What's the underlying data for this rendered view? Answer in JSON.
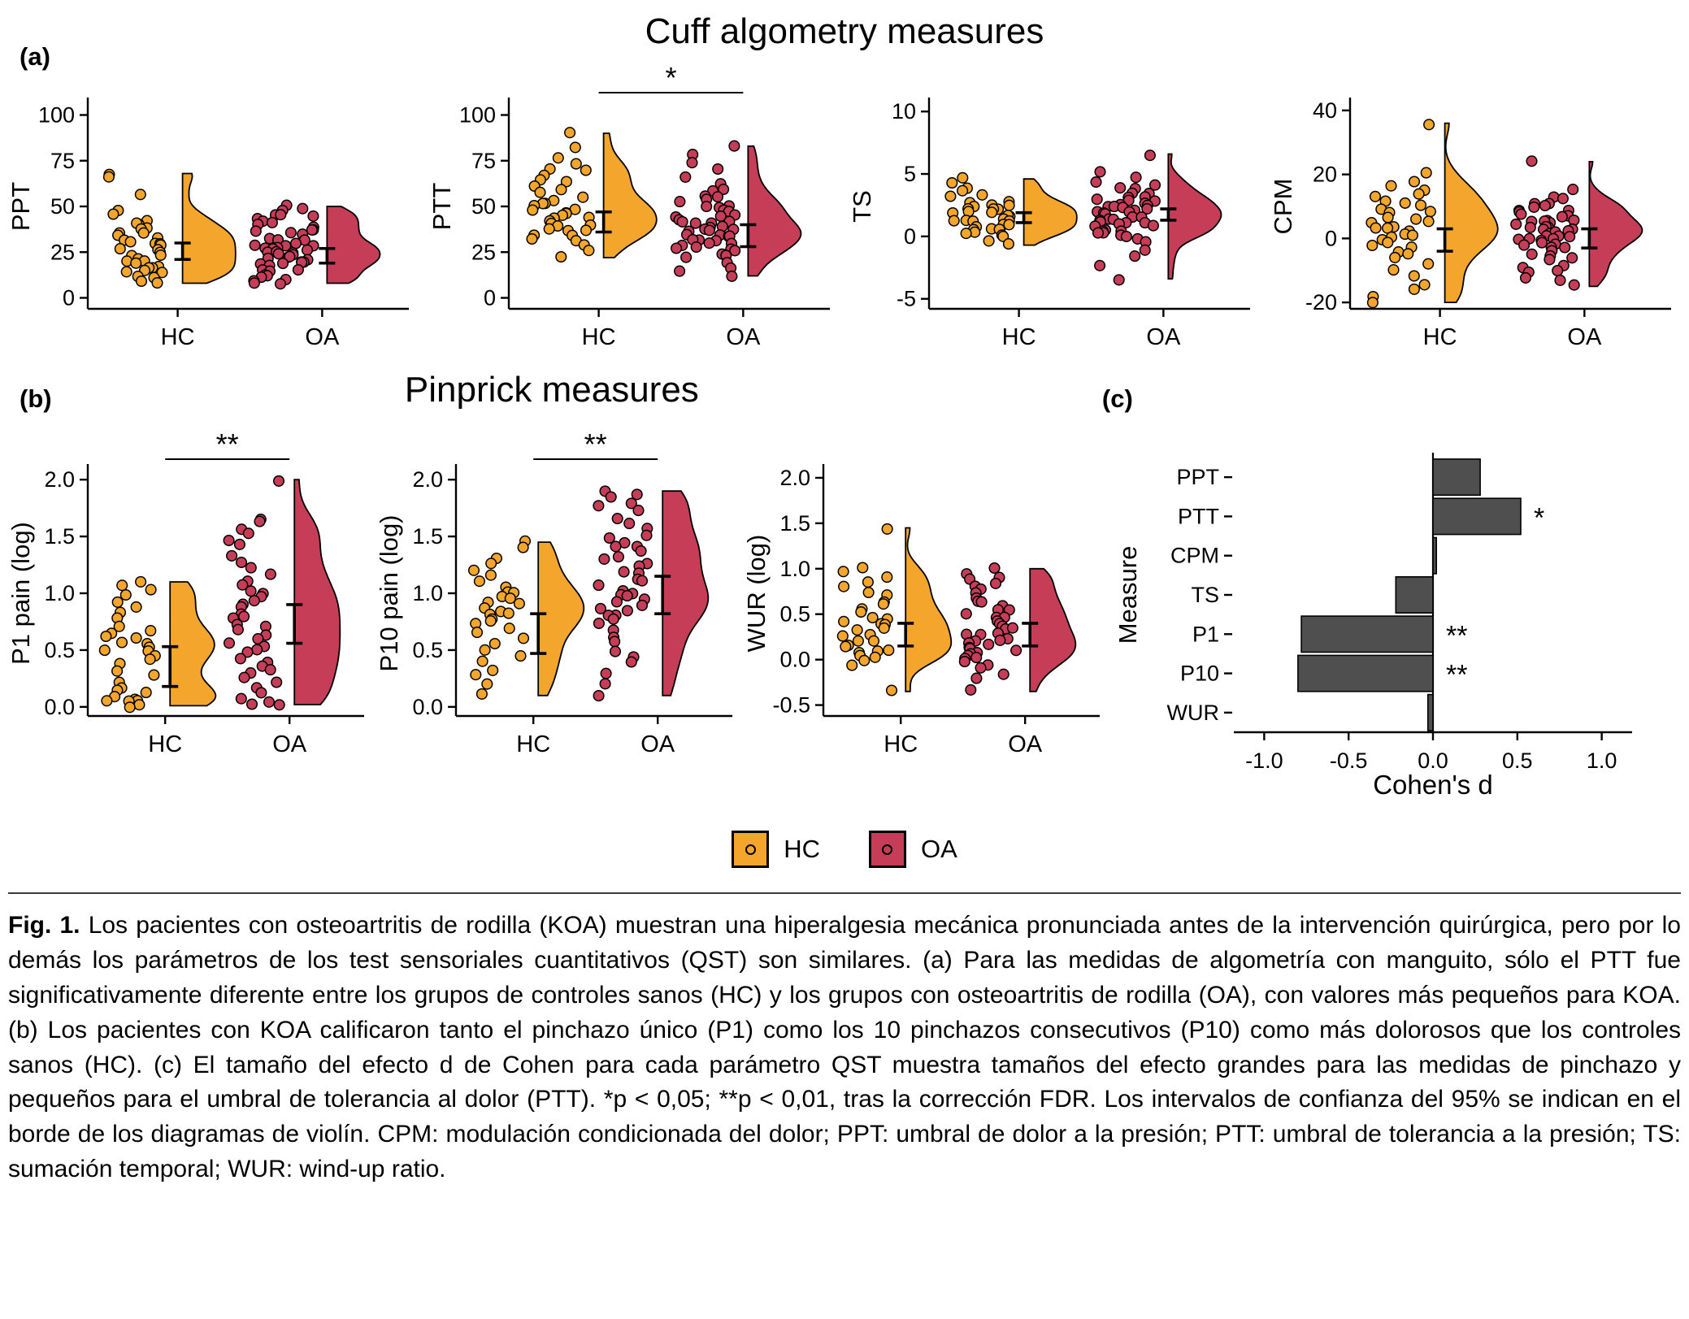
{
  "page": {
    "title_a": "Cuff algometry measures",
    "title_b": "Pinprick measures",
    "panel_labels": {
      "a": "(a)",
      "b": "(b)",
      "c": "(c)"
    }
  },
  "colors": {
    "hc": "#F4A52C",
    "oa": "#C63D57",
    "bar": "#4F4F4F"
  },
  "legend": {
    "items": [
      {
        "label": "HC",
        "color": "#F4A52C"
      },
      {
        "label": "OA",
        "color": "#C63D57"
      }
    ]
  },
  "caption": {
    "label": "Fig. 1.",
    "body": "Los pacientes con osteoartritis de rodilla (KOA) muestran una hiperalgesia mecánica pronunciada antes de la intervención quirúrgica, pero por lo demás los parámetros de los test sensoriales cuantitativos (QST) son similares. (a) Para las medidas de algometría con manguito, sólo el PTT fue significativamente diferente entre los grupos de controles sanos (HC) y los grupos con osteoartritis de rodilla (OA), con valores más pequeños para KOA. (b) Los pacientes con KOA calificaron tanto el pinchazo único (P1) como los 10 pinchazos consecutivos (P10) como más dolorosos que los controles sanos (HC). (c) El tamaño del efecto d de Cohen para cada parámetro QST muestra tamaños del efecto grandes para las medidas de pinchazo y pequeños para el umbral de tolerancia al dolor (PTT). *p < 0,05; **p < 0,01, tras la corrección FDR. Los intervalos de confianza del 95% se indican en el borde de los diagramas de violín. CPM: modulación condicionada del dolor; PPT: umbral de dolor a la presión; PTT: umbral de tolerancia a la presión; TS: sumación temporal; WUR: wind-up ratio."
  },
  "chart_data": [
    {
      "id": "ppt",
      "type": "raincloud",
      "ylabel": "PPT",
      "yticks": [
        0,
        25,
        50,
        75,
        100
      ],
      "ytick_labels": [
        "0",
        "25",
        "50",
        "75",
        "100"
      ],
      "ydomain": [
        -6,
        106
      ],
      "categories": [
        "HC",
        "OA"
      ],
      "sig": "",
      "groups": [
        {
          "name": "HC",
          "ci": [
            21,
            30
          ],
          "values": [
            68,
            66,
            57,
            48,
            45,
            43,
            41,
            40,
            38,
            37,
            36,
            35,
            34,
            33,
            32,
            31,
            30,
            29,
            28,
            27,
            26,
            25,
            24,
            23,
            22,
            21,
            20,
            19,
            18,
            17,
            16,
            15,
            14,
            13,
            12,
            11,
            10,
            8
          ]
        },
        {
          "name": "OA",
          "ci": [
            19,
            27
          ],
          "values": [
            50,
            48,
            47,
            46,
            45,
            44,
            43,
            42,
            41,
            40,
            39,
            38,
            37,
            36,
            35,
            34,
            33,
            32,
            31,
            30,
            29,
            29,
            28,
            28,
            27,
            27,
            26,
            25,
            25,
            24,
            24,
            23,
            22,
            22,
            21,
            21,
            20,
            20,
            19,
            18,
            18,
            17,
            16,
            15,
            14,
            13,
            12,
            11,
            10,
            9,
            8,
            8
          ]
        }
      ]
    },
    {
      "id": "ptt",
      "type": "raincloud",
      "ylabel": "PTT",
      "yticks": [
        0,
        25,
        50,
        75,
        100
      ],
      "ytick_labels": [
        "0",
        "25",
        "50",
        "75",
        "100"
      ],
      "ydomain": [
        -6,
        106
      ],
      "categories": [
        "HC",
        "OA"
      ],
      "sig": "*",
      "groups": [
        {
          "name": "HC",
          "ci": [
            36,
            47
          ],
          "values": [
            90,
            82,
            76,
            73,
            71,
            69,
            67,
            65,
            63,
            61,
            59,
            57,
            55,
            54,
            52,
            51,
            50,
            49,
            48,
            47,
            46,
            45,
            44,
            43,
            42,
            41,
            40,
            39,
            38,
            37,
            36,
            35,
            34,
            33,
            31,
            29,
            26,
            22
          ]
        },
        {
          "name": "OA",
          "ci": [
            28,
            40
          ],
          "values": [
            83,
            78,
            74,
            70,
            66,
            63,
            60,
            58,
            56,
            55,
            53,
            52,
            51,
            50,
            49,
            48,
            47,
            46,
            45,
            44,
            43,
            42,
            41,
            40,
            40,
            39,
            38,
            38,
            37,
            36,
            36,
            35,
            34,
            34,
            33,
            32,
            32,
            31,
            30,
            30,
            29,
            28,
            27,
            26,
            25,
            24,
            23,
            22,
            20,
            17,
            14,
            12
          ]
        }
      ]
    },
    {
      "id": "ts",
      "type": "raincloud",
      "ylabel": "TS",
      "yticks": [
        -5,
        0,
        5,
        10
      ],
      "ytick_labels": [
        "-5",
        "0",
        "5",
        "10"
      ],
      "ydomain": [
        -5.8,
        10.6
      ],
      "categories": [
        "HC",
        "OA"
      ],
      "sig": "",
      "groups": [
        {
          "name": "HC",
          "ci": [
            1.1,
            1.9
          ],
          "values": [
            4.6,
            4.2,
            3.9,
            3.6,
            3.3,
            3.1,
            2.9,
            2.8,
            2.6,
            2.5,
            2.4,
            2.3,
            2.2,
            2.1,
            2.0,
            1.9,
            1.8,
            1.7,
            1.6,
            1.5,
            1.4,
            1.3,
            1.2,
            1.1,
            1.0,
            0.9,
            0.8,
            0.7,
            0.6,
            0.5,
            0.4,
            0.2,
            0.1,
            0.0,
            -0.3,
            -0.7
          ]
        },
        {
          "name": "OA",
          "ci": [
            1.3,
            2.2
          ],
          "values": [
            6.6,
            5.1,
            4.6,
            4.3,
            4.1,
            3.9,
            3.7,
            3.5,
            3.4,
            3.2,
            3.1,
            3.0,
            2.9,
            2.8,
            2.7,
            2.6,
            2.5,
            2.4,
            2.3,
            2.2,
            2.1,
            2.0,
            2.0,
            1.9,
            1.8,
            1.7,
            1.6,
            1.5,
            1.5,
            1.4,
            1.3,
            1.2,
            1.1,
            1.0,
            0.9,
            0.8,
            0.7,
            0.6,
            0.5,
            0.4,
            0.3,
            0.2,
            0.1,
            0.0,
            -0.2,
            -0.5,
            -1.0,
            -1.6,
            -2.4,
            -3.4
          ]
        }
      ]
    },
    {
      "id": "cpm",
      "type": "raincloud",
      "ylabel": "CPM",
      "yticks": [
        -20,
        0,
        20,
        40
      ],
      "ytick_labels": [
        "-20",
        "0",
        "20",
        "40"
      ],
      "ydomain": [
        -22,
        42
      ],
      "categories": [
        "HC",
        "OA"
      ],
      "sig": "",
      "groups": [
        {
          "name": "HC",
          "ci": [
            -4,
            3
          ],
          "values": [
            36,
            21,
            18,
            16,
            15,
            14,
            13,
            12,
            11,
            10,
            9,
            8,
            8,
            7,
            6,
            5,
            5,
            4,
            3,
            3,
            2,
            1,
            1,
            0,
            0,
            -1,
            -2,
            -3,
            -4,
            -5,
            -6,
            -8,
            -10,
            -12,
            -14,
            -16,
            -18,
            -20
          ]
        },
        {
          "name": "OA",
          "ci": [
            -3,
            3
          ],
          "values": [
            24,
            15,
            13,
            12,
            11,
            11,
            10,
            10,
            9,
            9,
            8,
            8,
            7,
            7,
            6,
            6,
            5,
            5,
            5,
            4,
            4,
            4,
            3,
            3,
            3,
            2,
            2,
            2,
            1,
            1,
            1,
            0,
            0,
            0,
            -1,
            -1,
            -2,
            -2,
            -3,
            -3,
            -4,
            -5,
            -5,
            -6,
            -7,
            -8,
            -9,
            -10,
            -11,
            -12,
            -13,
            -15
          ]
        }
      ]
    },
    {
      "id": "p1",
      "type": "raincloud",
      "ylabel": "P1 pain (log)",
      "yticks": [
        0,
        0.5,
        1,
        1.5,
        2
      ],
      "ytick_labels": [
        "0.0",
        "0.5",
        "1.0",
        "1.5",
        "2.0"
      ],
      "ydomain": [
        -0.08,
        2.08
      ],
      "categories": [
        "HC",
        "OA"
      ],
      "sig": "**",
      "groups": [
        {
          "name": "HC",
          "ci": [
            0.18,
            0.53
          ],
          "values": [
            1.1,
            1.08,
            1.02,
            0.98,
            0.93,
            0.88,
            0.83,
            0.78,
            0.72,
            0.68,
            0.65,
            0.62,
            0.6,
            0.58,
            0.55,
            0.52,
            0.5,
            0.48,
            0.45,
            0.42,
            0.38,
            0.33,
            0.28,
            0.22,
            0.18,
            0.15,
            0.12,
            0.1,
            0.08,
            0.06,
            0.05,
            0.04,
            0.02,
            0.01
          ]
        },
        {
          "name": "OA",
          "ci": [
            0.56,
            0.9
          ],
          "values": [
            2.0,
            1.66,
            1.62,
            1.57,
            1.52,
            1.47,
            1.42,
            1.32,
            1.27,
            1.22,
            1.17,
            1.12,
            1.07,
            1.02,
            1.0,
            0.97,
            0.93,
            0.9,
            0.87,
            0.83,
            0.8,
            0.77,
            0.73,
            0.7,
            0.67,
            0.63,
            0.6,
            0.57,
            0.53,
            0.5,
            0.47,
            0.43,
            0.4,
            0.37,
            0.33,
            0.3,
            0.27,
            0.22,
            0.17,
            0.12,
            0.08,
            0.05,
            0.03,
            0.02
          ]
        }
      ]
    },
    {
      "id": "p10",
      "type": "raincloud",
      "ylabel": "P10 pain (log)",
      "yticks": [
        0,
        0.5,
        1,
        1.5,
        2
      ],
      "ytick_labels": [
        "0.0",
        "0.5",
        "1.0",
        "1.5",
        "2.0"
      ],
      "ydomain": [
        -0.08,
        2.08
      ],
      "categories": [
        "HC",
        "OA"
      ],
      "sig": "**",
      "groups": [
        {
          "name": "HC",
          "ci": [
            0.47,
            0.82
          ],
          "values": [
            1.45,
            1.4,
            1.32,
            1.26,
            1.2,
            1.15,
            1.1,
            1.06,
            1.02,
            1.0,
            0.97,
            0.95,
            0.92,
            0.9,
            0.87,
            0.85,
            0.82,
            0.8,
            0.77,
            0.75,
            0.72,
            0.7,
            0.65,
            0.6,
            0.55,
            0.5,
            0.45,
            0.4,
            0.33,
            0.27,
            0.2,
            0.1
          ]
        },
        {
          "name": "OA",
          "ci": [
            0.82,
            1.15
          ],
          "values": [
            1.9,
            1.88,
            1.85,
            1.8,
            1.76,
            1.72,
            1.66,
            1.62,
            1.57,
            1.52,
            1.48,
            1.45,
            1.42,
            1.4,
            1.37,
            1.33,
            1.3,
            1.27,
            1.23,
            1.2,
            1.17,
            1.13,
            1.1,
            1.07,
            1.03,
            1.0,
            1.0,
            0.97,
            0.95,
            0.92,
            0.9,
            0.87,
            0.85,
            0.82,
            0.8,
            0.77,
            0.73,
            0.68,
            0.62,
            0.57,
            0.5,
            0.45,
            0.4,
            0.3,
            0.2,
            0.1
          ]
        }
      ]
    },
    {
      "id": "wur",
      "type": "raincloud",
      "ylabel": "WUR (log)",
      "yticks": [
        -0.5,
        0,
        0.5,
        1,
        1.5,
        2
      ],
      "ytick_labels": [
        "-0.5",
        "0.0",
        "0.5",
        "1.0",
        "1.5",
        "2.0"
      ],
      "ydomain": [
        -0.62,
        2.08
      ],
      "categories": [
        "HC",
        "OA"
      ],
      "sig": "",
      "groups": [
        {
          "name": "HC",
          "ci": [
            0.15,
            0.4
          ],
          "values": [
            1.45,
            1.02,
            0.96,
            0.9,
            0.85,
            0.8,
            0.75,
            0.7,
            0.65,
            0.6,
            0.56,
            0.52,
            0.48,
            0.45,
            0.42,
            0.4,
            0.37,
            0.34,
            0.31,
            0.28,
            0.25,
            0.22,
            0.2,
            0.17,
            0.14,
            0.12,
            0.1,
            0.07,
            0.04,
            0.02,
            0.0,
            -0.05,
            -0.35
          ]
        },
        {
          "name": "OA",
          "ci": [
            0.15,
            0.4
          ],
          "values": [
            1.0,
            0.96,
            0.92,
            0.88,
            0.84,
            0.8,
            0.76,
            0.72,
            0.68,
            0.65,
            0.62,
            0.59,
            0.56,
            0.53,
            0.5,
            0.48,
            0.45,
            0.43,
            0.4,
            0.38,
            0.35,
            0.33,
            0.3,
            0.28,
            0.26,
            0.24,
            0.22,
            0.2,
            0.18,
            0.16,
            0.14,
            0.12,
            0.1,
            0.08,
            0.06,
            0.04,
            0.02,
            0.0,
            -0.03,
            -0.06,
            -0.1,
            -0.15,
            -0.22,
            -0.35
          ]
        }
      ]
    },
    {
      "id": "cohens-d",
      "type": "bar_h",
      "xlabel": "Cohen's d",
      "ylabel": "Measure",
      "xlim": [
        -1.18,
        1.18
      ],
      "xticks": [
        -1,
        -0.5,
        0,
        0.5,
        1
      ],
      "xtick_labels": [
        "-1.0",
        "-0.5",
        "0.0",
        "0.5",
        "1.0"
      ],
      "categories": [
        "PPT",
        "PTT",
        "CPM",
        "TS",
        "P1",
        "P10",
        "WUR"
      ],
      "values": [
        0.28,
        0.52,
        0.02,
        -0.22,
        -0.78,
        -0.8,
        -0.03
      ],
      "sig": [
        "",
        "*",
        "",
        "",
        "**",
        "**",
        ""
      ]
    }
  ]
}
